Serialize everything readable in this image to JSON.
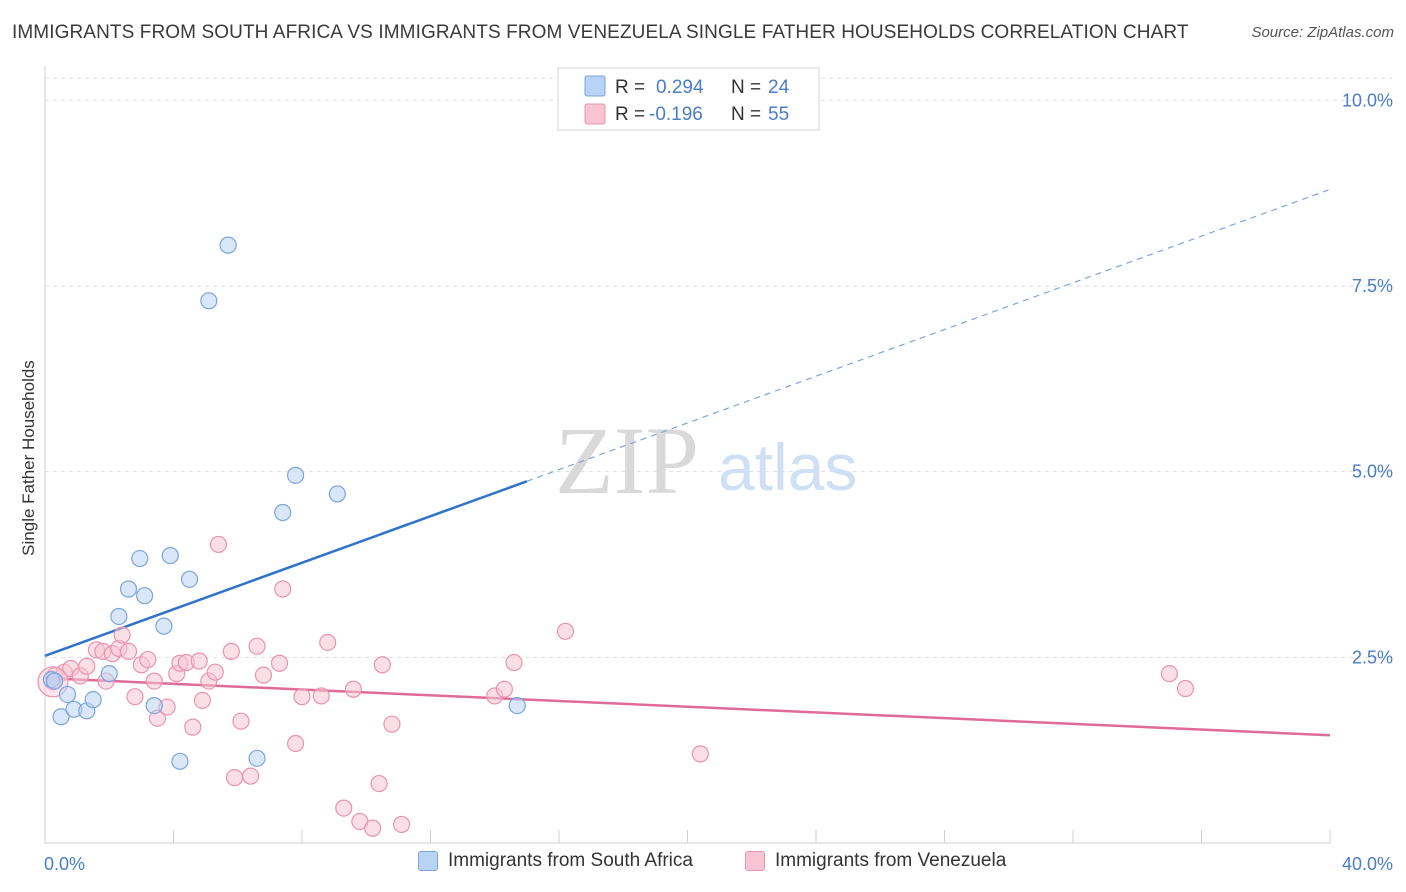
{
  "header": {
    "title": "IMMIGRANTS FROM SOUTH AFRICA VS IMMIGRANTS FROM VENEZUELA SINGLE FATHER HOUSEHOLDS CORRELATION CHART",
    "source": "Source: ZipAtlas.com"
  },
  "watermark": {
    "zip": "ZIP",
    "atlas": "atlas"
  },
  "colors": {
    "blue_fill": "#b9d3f4",
    "blue_stroke": "#7aa5dd",
    "blue_line": "#2f74c8",
    "pink_fill": "#f8c4d4",
    "pink_stroke": "#e993b0",
    "pink_line": "#e06a98",
    "axis_text": "#4a7cc9",
    "grid": "#dedede"
  },
  "legend_top": {
    "rows": [
      {
        "r_label": "R =",
        "r_value": "0.294",
        "n_label": "N =",
        "n_value": "24"
      },
      {
        "r_label": "R =",
        "r_value": "-0.196",
        "n_label": "N =",
        "n_value": "55"
      }
    ]
  },
  "legend_bottom": [
    {
      "label": "Immigrants from South Africa"
    },
    {
      "label": "Immigrants from Venezuela"
    }
  ],
  "chart_data": {
    "type": "scatter",
    "title": "IMMIGRANTS FROM SOUTH AFRICA VS IMMIGRANTS FROM VENEZUELA SINGLE FATHER HOUSEHOLDS CORRELATION CHART",
    "xlabel": "",
    "ylabel": "Single Father Households",
    "xlim": [
      0,
      40
    ],
    "ylim": [
      0,
      10.3
    ],
    "x_tick_labels": [
      "0.0%",
      "40.0%"
    ],
    "y_ticks": [
      2.5,
      5.0,
      7.5,
      10.0
    ],
    "y_tick_labels": [
      "2.5%",
      "5.0%",
      "7.5%",
      "10.0%"
    ],
    "grid": true,
    "legend_position": "top-center",
    "series": [
      {
        "name": "Immigrants from South Africa",
        "R": 0.294,
        "N": 24,
        "trend": {
          "x0": 0,
          "y0": 2.52,
          "x1": 15.0,
          "y1": 4.87,
          "dashed_to_x": 40,
          "dashed_to_y": 8.8
        },
        "points": [
          [
            0.2,
            2.2
          ],
          [
            0.3,
            2.18
          ],
          [
            0.5,
            1.7
          ],
          [
            0.7,
            2.0
          ],
          [
            0.9,
            1.8
          ],
          [
            1.3,
            1.78
          ],
          [
            1.5,
            1.93
          ],
          [
            2.0,
            2.28
          ],
          [
            2.3,
            3.05
          ],
          [
            2.6,
            3.42
          ],
          [
            2.95,
            3.83
          ],
          [
            3.1,
            3.33
          ],
          [
            3.4,
            1.85
          ],
          [
            3.7,
            2.92
          ],
          [
            3.9,
            3.87
          ],
          [
            4.2,
            1.1
          ],
          [
            4.5,
            3.55
          ],
          [
            5.1,
            7.3
          ],
          [
            5.7,
            8.05
          ],
          [
            6.6,
            1.14
          ],
          [
            7.4,
            4.45
          ],
          [
            7.8,
            4.95
          ],
          [
            9.1,
            4.7
          ],
          [
            14.7,
            1.85
          ]
        ]
      },
      {
        "name": "Immigrants from Venezuela",
        "R": -0.196,
        "N": 55,
        "trend": {
          "x0": 0,
          "y0": 2.22,
          "x1": 40,
          "y1": 1.45
        },
        "points": [
          [
            0.3,
            2.25
          ],
          [
            0.6,
            2.3
          ],
          [
            0.8,
            2.35
          ],
          [
            1.1,
            2.25
          ],
          [
            1.3,
            2.38
          ],
          [
            1.6,
            2.6
          ],
          [
            1.8,
            2.58
          ],
          [
            1.9,
            2.18
          ],
          [
            2.1,
            2.55
          ],
          [
            2.3,
            2.62
          ],
          [
            2.4,
            2.8
          ],
          [
            2.6,
            2.58
          ],
          [
            2.8,
            1.97
          ],
          [
            3.0,
            2.4
          ],
          [
            3.2,
            2.47
          ],
          [
            3.4,
            2.18
          ],
          [
            3.5,
            1.68
          ],
          [
            3.8,
            1.83
          ],
          [
            4.1,
            2.28
          ],
          [
            4.2,
            2.42
          ],
          [
            4.4,
            2.43
          ],
          [
            4.6,
            1.56
          ],
          [
            4.8,
            2.45
          ],
          [
            4.9,
            1.92
          ],
          [
            5.1,
            2.18
          ],
          [
            5.3,
            2.3
          ],
          [
            5.4,
            4.02
          ],
          [
            5.8,
            2.58
          ],
          [
            5.9,
            0.88
          ],
          [
            6.1,
            1.64
          ],
          [
            6.4,
            0.9
          ],
          [
            6.6,
            2.65
          ],
          [
            6.8,
            2.26
          ],
          [
            7.3,
            2.42
          ],
          [
            7.4,
            3.42
          ],
          [
            7.8,
            1.34
          ],
          [
            8.0,
            1.97
          ],
          [
            8.6,
            1.98
          ],
          [
            8.8,
            2.7
          ],
          [
            9.3,
            0.47
          ],
          [
            9.6,
            2.07
          ],
          [
            9.8,
            0.29
          ],
          [
            10.2,
            0.2
          ],
          [
            10.4,
            0.8
          ],
          [
            10.5,
            2.4
          ],
          [
            10.8,
            1.6
          ],
          [
            11.1,
            0.25
          ],
          [
            14.0,
            1.98
          ],
          [
            14.3,
            2.07
          ],
          [
            14.6,
            2.43
          ],
          [
            16.2,
            2.85
          ],
          [
            20.4,
            1.2
          ],
          [
            35.0,
            2.28
          ],
          [
            35.5,
            2.08
          ],
          [
            0.25,
            2.17
          ]
        ]
      }
    ]
  }
}
